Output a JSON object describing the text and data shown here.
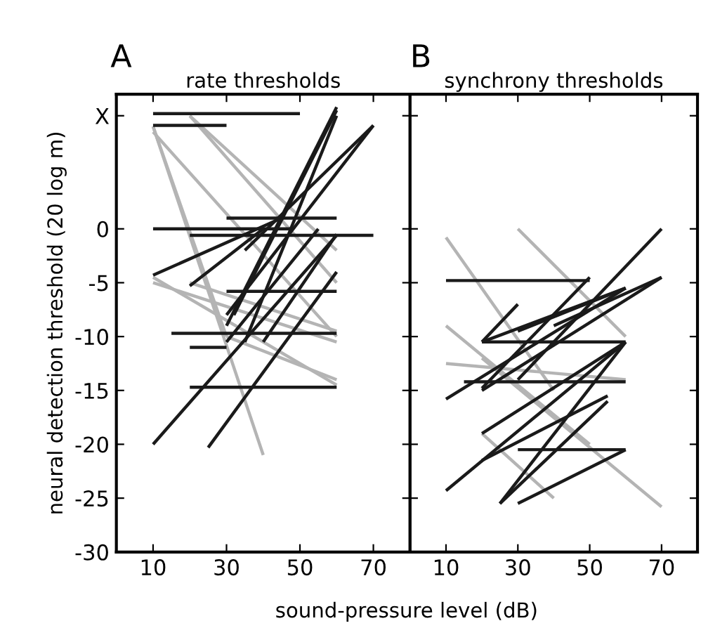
{
  "chart_data": [
    {
      "type": "line",
      "title": "A",
      "subtitle": "rate thresholds",
      "xlabel": "sound-pressure level (dB)",
      "ylabel": "neural detection threshold (20 log m)",
      "xlim": [
        0,
        80
      ],
      "xticks": [
        10,
        30,
        50,
        70
      ],
      "ylim": [
        -30,
        12.5
      ],
      "yticks": [
        -30,
        -25,
        -20,
        -15,
        -10,
        -5,
        0,
        {
          "value": 10.5,
          "label": "X"
        }
      ],
      "grid": false,
      "legend": false,
      "series": [
        {
          "color": "#b4b4b4",
          "x": [
            10,
            40
          ],
          "values": [
            9.5,
            -21
          ]
        },
        {
          "color": "#b4b4b4",
          "x": [
            20,
            60
          ],
          "values": [
            10.5,
            -2
          ]
        },
        {
          "color": "#b4b4b4",
          "x": [
            20,
            60
          ],
          "values": [
            10.5,
            -5
          ]
        },
        {
          "color": "#b4b4b4",
          "x": [
            10,
            60
          ],
          "values": [
            -5,
            -10.5
          ]
        },
        {
          "color": "#b4b4b4",
          "x": [
            10,
            60
          ],
          "values": [
            -4.5,
            -14.5
          ]
        },
        {
          "color": "#b4b4b4",
          "x": [
            10,
            60
          ],
          "values": [
            9,
            -10
          ]
        },
        {
          "color": "#b4b4b4",
          "x": [
            20,
            60
          ],
          "values": [
            -5,
            -9.5
          ]
        },
        {
          "color": "#b4b4b4",
          "x": [
            30,
            60
          ],
          "values": [
            -10,
            -14
          ]
        },
        {
          "color": "#b4b4b4",
          "x": [
            10,
            30
          ],
          "values": [
            9.5,
            -10
          ]
        },
        {
          "color": "#1a1a1a",
          "x": [
            10,
            50
          ],
          "values": [
            10.7,
            10.7
          ]
        },
        {
          "color": "#1a1a1a",
          "x": [
            10,
            30
          ],
          "values": [
            9.6,
            9.6
          ]
        },
        {
          "color": "#1a1a1a",
          "x": [
            10,
            48
          ],
          "values": [
            0,
            0
          ]
        },
        {
          "color": "#1a1a1a",
          "x": [
            30,
            60
          ],
          "values": [
            1,
            1
          ]
        },
        {
          "color": "#1a1a1a",
          "x": [
            20,
            70
          ],
          "values": [
            -0.6,
            -0.6
          ]
        },
        {
          "color": "#1a1a1a",
          "x": [
            30,
            60
          ],
          "values": [
            -5.8,
            -5.8
          ]
        },
        {
          "color": "#1a1a1a",
          "x": [
            15,
            60
          ],
          "values": [
            -9.7,
            -9.7
          ]
        },
        {
          "color": "#1a1a1a",
          "x": [
            20,
            30
          ],
          "values": [
            -11,
            -11
          ]
        },
        {
          "color": "#1a1a1a",
          "x": [
            20,
            60
          ],
          "values": [
            -14.7,
            -14.7
          ]
        },
        {
          "color": "#1a1a1a",
          "x": [
            10,
            60
          ],
          "values": [
            -20,
            -0.6
          ]
        },
        {
          "color": "#1a1a1a",
          "x": [
            25,
            60
          ],
          "values": [
            -20.3,
            -4
          ]
        },
        {
          "color": "#1a1a1a",
          "x": [
            10,
            45
          ],
          "values": [
            -4.3,
            1
          ]
        },
        {
          "color": "#1a1a1a",
          "x": [
            20,
            40
          ],
          "values": [
            -5.3,
            0
          ]
        },
        {
          "color": "#1a1a1a",
          "x": [
            30,
            60
          ],
          "values": [
            -9,
            11.3
          ]
        },
        {
          "color": "#1a1a1a",
          "x": [
            32,
            60
          ],
          "values": [
            -8,
            11
          ]
        },
        {
          "color": "#1a1a1a",
          "x": [
            35,
            60
          ],
          "values": [
            -10.5,
            10.5
          ]
        },
        {
          "color": "#1a1a1a",
          "x": [
            40,
            60
          ],
          "values": [
            -10.5,
            -0.5
          ]
        },
        {
          "color": "#1a1a1a",
          "x": [
            30,
            70
          ],
          "values": [
            -8,
            9.6
          ]
        },
        {
          "color": "#1a1a1a",
          "x": [
            35,
            70
          ],
          "values": [
            -2,
            9.6
          ]
        },
        {
          "color": "#1a1a1a",
          "x": [
            30,
            55
          ],
          "values": [
            -10.5,
            0
          ]
        }
      ]
    },
    {
      "type": "line",
      "title": "B",
      "subtitle": "synchrony thresholds",
      "xlim": [
        0,
        80
      ],
      "xticks": [
        10,
        30,
        50,
        70
      ],
      "ylim": [
        -30,
        12.5
      ],
      "yticks": [
        -30,
        -25,
        -20,
        -15,
        -10,
        -5,
        0,
        {
          "value": 10.5,
          "label": null
        }
      ],
      "tick_labels": "x",
      "grid": false,
      "legend": false,
      "series": [
        {
          "color": "#b4b4b4",
          "x": [
            10,
            40
          ],
          "values": [
            -0.8,
            -15
          ]
        },
        {
          "color": "#b4b4b4",
          "x": [
            10,
            50
          ],
          "values": [
            -9,
            -20
          ]
        },
        {
          "color": "#b4b4b4",
          "x": [
            30,
            60
          ],
          "values": [
            0,
            -10
          ]
        },
        {
          "color": "#b4b4b4",
          "x": [
            20,
            70
          ],
          "values": [
            -12,
            -25.8
          ]
        },
        {
          "color": "#b4b4b4",
          "x": [
            10,
            60
          ],
          "values": [
            -12.5,
            -14
          ]
        },
        {
          "color": "#b4b4b4",
          "x": [
            20,
            40
          ],
          "values": [
            -19,
            -25
          ]
        },
        {
          "color": "#1a1a1a",
          "x": [
            10,
            50
          ],
          "values": [
            -4.8,
            -4.8
          ]
        },
        {
          "color": "#1a1a1a",
          "x": [
            20,
            60
          ],
          "values": [
            -10.5,
            -10.5
          ]
        },
        {
          "color": "#1a1a1a",
          "x": [
            15,
            60
          ],
          "values": [
            -14.2,
            -14.2
          ]
        },
        {
          "color": "#1a1a1a",
          "x": [
            30,
            60
          ],
          "values": [
            -20.5,
            -20.5
          ]
        },
        {
          "color": "#1a1a1a",
          "x": [
            10,
            60
          ],
          "values": [
            -24.3,
            -10.5
          ]
        },
        {
          "color": "#1a1a1a",
          "x": [
            25,
            60
          ],
          "values": [
            -25.5,
            -10.5
          ]
        },
        {
          "color": "#1a1a1a",
          "x": [
            30,
            60
          ],
          "values": [
            -25.5,
            -20.5
          ]
        },
        {
          "color": "#1a1a1a",
          "x": [
            25,
            55
          ],
          "values": [
            -25.5,
            -16
          ]
        },
        {
          "color": "#1a1a1a",
          "x": [
            10,
            60
          ],
          "values": [
            -15.8,
            -5.5
          ]
        },
        {
          "color": "#1a1a1a",
          "x": [
            20,
            60
          ],
          "values": [
            -19,
            -10.5
          ]
        },
        {
          "color": "#1a1a1a",
          "x": [
            20,
            55
          ],
          "values": [
            -21.5,
            -15.5
          ]
        },
        {
          "color": "#1a1a1a",
          "x": [
            20,
            70
          ],
          "values": [
            -15,
            -4.5
          ]
        },
        {
          "color": "#1a1a1a",
          "x": [
            20,
            30
          ],
          "values": [
            -10.5,
            -7
          ]
        },
        {
          "color": "#1a1a1a",
          "x": [
            20,
            60
          ],
          "values": [
            -10.5,
            -5.5
          ]
        },
        {
          "color": "#1a1a1a",
          "x": [
            30,
            60
          ],
          "values": [
            -9.5,
            -5.5
          ]
        },
        {
          "color": "#1a1a1a",
          "x": [
            40,
            70
          ],
          "values": [
            -9,
            -4.5
          ]
        },
        {
          "color": "#1a1a1a",
          "x": [
            30,
            70
          ],
          "values": [
            -14,
            0
          ]
        },
        {
          "color": "#1a1a1a",
          "x": [
            20,
            50
          ],
          "values": [
            -14.8,
            -4.5
          ]
        }
      ]
    }
  ]
}
